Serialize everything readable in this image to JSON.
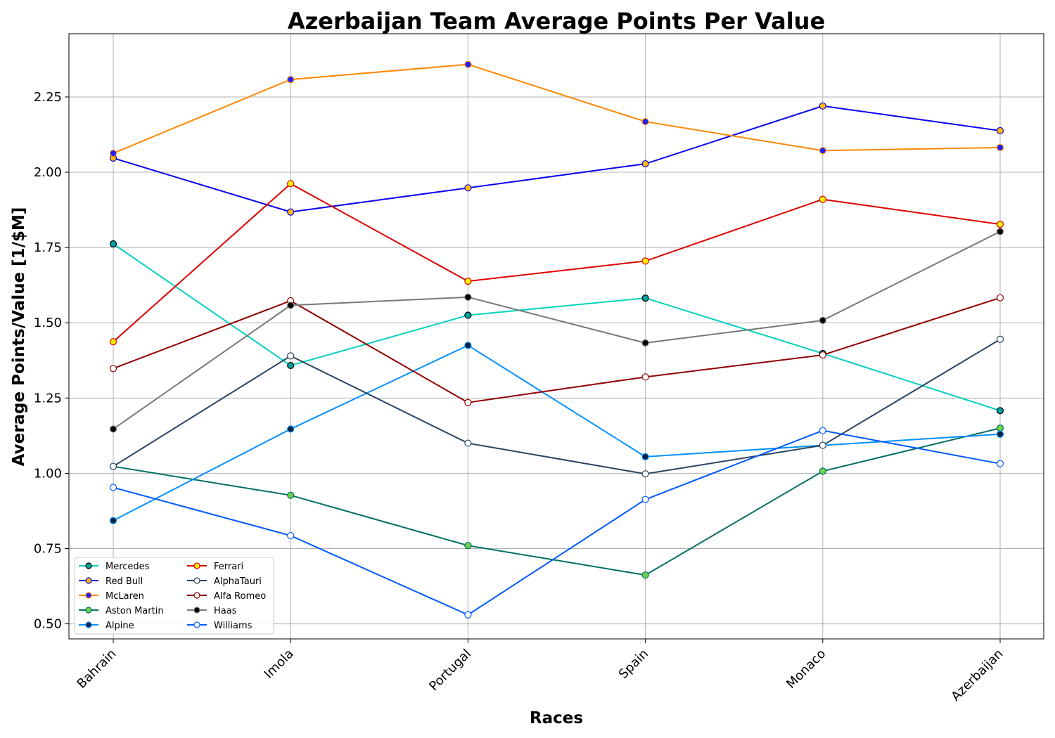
{
  "chart_data": {
    "type": "line",
    "title": "Azerbaijan Team Average Points Per Value",
    "xlabel": "Races",
    "ylabel": "Average Points/Value [1/$M]",
    "categories": [
      "Bahrain",
      "Imola",
      "Portugal",
      "Spain",
      "Monaco",
      "Azerbaijan"
    ],
    "ylim": [
      0.45,
      2.46
    ],
    "yticks": [
      0.5,
      0.75,
      1.0,
      1.25,
      1.5,
      1.75,
      2.0,
      2.25
    ],
    "ytick_labels": [
      "0.50",
      "0.75",
      "1.00",
      "1.25",
      "1.50",
      "1.75",
      "2.00",
      "2.25"
    ],
    "grid": true,
    "legend_position": "lower-left",
    "legend_columns": 2,
    "series": [
      {
        "name": "Mercedes",
        "color": "#00d2be",
        "marker_face": "#00a19c",
        "marker_edge": "#000000",
        "values": [
          1.762,
          1.358,
          1.525,
          1.582,
          1.398,
          1.208
        ]
      },
      {
        "name": "Red Bull",
        "color": "#0600ef",
        "marker_face": "#ffb800",
        "marker_edge": "#0600ef",
        "values": [
          2.047,
          1.868,
          1.948,
          2.028,
          2.22,
          2.138
        ]
      },
      {
        "name": "McLaren",
        "color": "#ff8700",
        "marker_face": "#1e1eff",
        "marker_edge": "#ff8700",
        "values": [
          2.063,
          2.308,
          2.358,
          2.168,
          2.072,
          2.082
        ]
      },
      {
        "name": "Aston Martin",
        "color": "#006f62",
        "marker_face": "#6cd34a",
        "marker_edge": "#006f62",
        "values": [
          1.023,
          0.927,
          0.76,
          0.662,
          1.007,
          1.15
        ]
      },
      {
        "name": "Alpine",
        "color": "#0090ff",
        "marker_face": "#002244",
        "marker_edge": "#0090ff",
        "values": [
          0.843,
          1.147,
          1.425,
          1.055,
          1.093,
          1.13
        ]
      },
      {
        "name": "Ferrari",
        "color": "#dc0000",
        "marker_face": "#fff200",
        "marker_edge": "#dc0000",
        "values": [
          1.437,
          1.962,
          1.638,
          1.705,
          1.91,
          1.827
        ]
      },
      {
        "name": "AlphaTauri",
        "color": "#2b4562",
        "marker_face": "#ffffff",
        "marker_edge": "#2b4562",
        "values": [
          1.023,
          1.39,
          1.1,
          0.998,
          1.093,
          1.445
        ]
      },
      {
        "name": "Alfa Romeo",
        "color": "#900000",
        "marker_face": "#ffffff",
        "marker_edge": "#900000",
        "values": [
          1.348,
          1.573,
          1.235,
          1.32,
          1.393,
          1.583
        ]
      },
      {
        "name": "Haas",
        "color": "#787878",
        "marker_face": "#000000",
        "marker_edge": "#787878",
        "values": [
          1.147,
          1.558,
          1.585,
          1.433,
          1.508,
          1.803
        ]
      },
      {
        "name": "Williams",
        "color": "#005aff",
        "marker_face": "#ffffff",
        "marker_edge": "#005aff",
        "values": [
          0.953,
          0.793,
          0.53,
          0.913,
          1.142,
          1.032
        ]
      }
    ]
  }
}
